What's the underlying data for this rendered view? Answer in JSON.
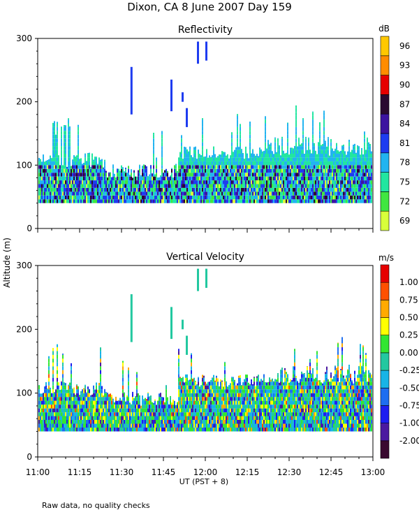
{
  "title": "Dixon, CA   8 June 2007   Day 159",
  "shared_ylabel": "Altitude (m)",
  "shared_xlabel": "UT   (PST + 8)",
  "footnote": "Raw data, no quality checks",
  "x_ticks": [
    "11:00",
    "11:15",
    "11:30",
    "11:45",
    "12:00",
    "12:15",
    "12:30",
    "12:45",
    "13:00"
  ],
  "chart_data": [
    {
      "type": "heatmap",
      "title": "Reflectivity",
      "xlabel": "UT (PST + 8)",
      "ylabel": "Altitude (m)",
      "x_range_minutes_since_11_00": [
        0,
        120
      ],
      "ylim": [
        0,
        300
      ],
      "y_ticks": [
        "0",
        "100",
        "200",
        "300"
      ],
      "colorbar": {
        "unit": "dB",
        "tick_labels": [
          "69",
          "72",
          "75",
          "78",
          "81",
          "84",
          "87",
          "90",
          "93",
          "96"
        ],
        "colors": [
          "#d8ff3a",
          "#40e640",
          "#22e6a0",
          "#22b4f0",
          "#1e3cf0",
          "#3c14a0",
          "#2a0a30",
          "#e60000",
          "#ff8c00",
          "#ffc800"
        ]
      }
    },
    {
      "type": "heatmap",
      "title": "Vertical Velocity",
      "xlabel": "UT (PST + 8)",
      "ylabel": "Altitude (m)",
      "x_range_minutes_since_11_00": [
        0,
        120
      ],
      "ylim": [
        0,
        300
      ],
      "y_ticks": [
        "0",
        "100",
        "200",
        "300"
      ],
      "colorbar": {
        "unit": "m/s",
        "tick_labels": [
          "-2.00",
          "-1.00",
          "-0.75",
          "-0.50",
          "-0.25",
          "0.00",
          "0.25",
          "0.50",
          "0.75",
          "1.00"
        ],
        "colors": [
          "#3a0a30",
          "#4b1aa0",
          "#1e1ef0",
          "#1e6ef0",
          "#18b4e6",
          "#22c8a0",
          "#32e632",
          "#ffff00",
          "#ffaa00",
          "#ff5000",
          "#e60000"
        ]
      }
    }
  ]
}
